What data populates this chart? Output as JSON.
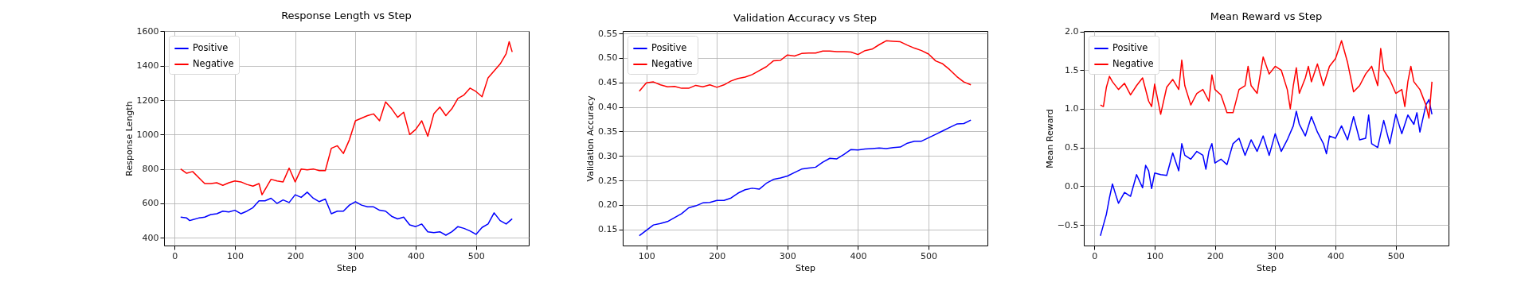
{
  "chart_data": [
    {
      "type": "line",
      "title": "Response Length vs Step",
      "xlabel": "Step",
      "ylabel": "Response Length",
      "xlim": [
        -17.5,
        587.5
      ],
      "xticks": [
        0,
        100,
        200,
        300,
        400,
        500
      ],
      "ylim": [
        355,
        1602
      ],
      "yticks": [
        400,
        600,
        800,
        1000,
        1200,
        1400,
        1600
      ],
      "grid": true,
      "legend": "top left",
      "series": [
        {
          "name": "Positive",
          "color": "#0000ff",
          "x": [
            10,
            20,
            25,
            30,
            40,
            50,
            60,
            70,
            80,
            90,
            100,
            110,
            120,
            130,
            140,
            150,
            160,
            170,
            180,
            190,
            200,
            210,
            220,
            230,
            240,
            250,
            260,
            270,
            280,
            290,
            300,
            310,
            320,
            330,
            340,
            350,
            360,
            370,
            380,
            390,
            400,
            410,
            420,
            430,
            440,
            450,
            460,
            470,
            480,
            490,
            500,
            510,
            520,
            530,
            540,
            550,
            560
          ],
          "values": [
            520,
            515,
            500,
            505,
            515,
            520,
            535,
            540,
            555,
            550,
            560,
            540,
            555,
            575,
            615,
            615,
            630,
            600,
            620,
            605,
            650,
            635,
            665,
            630,
            610,
            625,
            540,
            555,
            555,
            590,
            610,
            590,
            580,
            580,
            560,
            555,
            525,
            510,
            520,
            475,
            465,
            480,
            435,
            430,
            435,
            415,
            435,
            465,
            455,
            440,
            420,
            460,
            480,
            545,
            500,
            480,
            510
          ]
        },
        {
          "name": "Negative",
          "color": "#ff0000",
          "x": [
            10,
            20,
            30,
            40,
            50,
            60,
            70,
            80,
            90,
            100,
            110,
            120,
            130,
            140,
            145,
            150,
            160,
            170,
            180,
            190,
            200,
            210,
            220,
            230,
            240,
            250,
            260,
            270,
            280,
            290,
            300,
            310,
            320,
            330,
            340,
            350,
            360,
            370,
            380,
            390,
            400,
            410,
            420,
            430,
            440,
            450,
            460,
            470,
            480,
            490,
            500,
            510,
            520,
            530,
            540,
            550,
            555,
            560
          ],
          "values": [
            800,
            775,
            785,
            750,
            715,
            715,
            720,
            705,
            720,
            730,
            725,
            710,
            700,
            715,
            650,
            680,
            740,
            730,
            725,
            805,
            725,
            800,
            795,
            800,
            790,
            790,
            920,
            935,
            890,
            970,
            1080,
            1095,
            1110,
            1120,
            1080,
            1190,
            1150,
            1100,
            1130,
            1000,
            1030,
            1080,
            990,
            1120,
            1160,
            1110,
            1150,
            1210,
            1230,
            1270,
            1250,
            1220,
            1330,
            1370,
            1410,
            1470,
            1540,
            1480
          ]
        }
      ]
    },
    {
      "type": "line",
      "title": "Validation Accuracy vs Step",
      "xlabel": "Step",
      "ylabel": "Validation Accuracy",
      "xlim": [
        66.5,
        583.5
      ],
      "xticks": [
        100,
        200,
        300,
        400,
        500
      ],
      "ylim": [
        0.117,
        0.555
      ],
      "yticks": [
        {
          "value": 0.15,
          "label": "0.15"
        },
        {
          "value": 0.2,
          "label": "0.20"
        },
        {
          "value": 0.25,
          "label": "0.25"
        },
        {
          "value": 0.3,
          "label": "0.30"
        },
        {
          "value": 0.35,
          "label": "0.35"
        },
        {
          "value": 0.4,
          "label": "0.40"
        },
        {
          "value": 0.45,
          "label": "0.45"
        },
        {
          "value": 0.5,
          "label": "0.50"
        },
        {
          "value": 0.55,
          "label": "0.55"
        }
      ],
      "grid": true,
      "legend": "top left",
      "x": [
        90,
        100,
        110,
        120,
        130,
        140,
        150,
        160,
        170,
        180,
        190,
        200,
        210,
        220,
        230,
        240,
        250,
        260,
        270,
        280,
        290,
        300,
        310,
        320,
        330,
        340,
        350,
        360,
        370,
        380,
        390,
        400,
        410,
        420,
        430,
        440,
        450,
        460,
        470,
        480,
        490,
        500,
        510,
        520,
        530,
        540,
        550,
        560
      ],
      "series": [
        {
          "name": "Positive",
          "color": "#0000ff",
          "values": [
            0.137,
            0.148,
            0.159,
            0.162,
            0.166,
            0.174,
            0.182,
            0.194,
            0.198,
            0.204,
            0.205,
            0.209,
            0.209,
            0.214,
            0.224,
            0.231,
            0.234,
            0.232,
            0.244,
            0.252,
            0.255,
            0.259,
            0.266,
            0.273,
            0.275,
            0.277,
            0.287,
            0.295,
            0.294,
            0.303,
            0.313,
            0.312,
            0.314,
            0.315,
            0.316,
            0.315,
            0.317,
            0.318,
            0.326,
            0.33,
            0.33,
            0.337,
            0.344,
            0.351,
            0.358,
            0.365,
            0.366,
            0.373
          ]
        },
        {
          "name": "Negative",
          "color": "#ff0000",
          "values": [
            0.432,
            0.449,
            0.451,
            0.445,
            0.441,
            0.442,
            0.438,
            0.438,
            0.444,
            0.441,
            0.445,
            0.44,
            0.445,
            0.453,
            0.458,
            0.461,
            0.466,
            0.474,
            0.482,
            0.494,
            0.495,
            0.506,
            0.504,
            0.509,
            0.51,
            0.51,
            0.514,
            0.514,
            0.513,
            0.513,
            0.512,
            0.507,
            0.515,
            0.518,
            0.527,
            0.535,
            0.534,
            0.533,
            0.526,
            0.52,
            0.515,
            0.508,
            0.494,
            0.488,
            0.476,
            0.462,
            0.451,
            0.445
          ]
        }
      ]
    },
    {
      "type": "line",
      "title": "Mean Reward vs Step",
      "xlabel": "Step",
      "ylabel": "Mean Reward",
      "xlim": [
        -17.5,
        587.5
      ],
      "xticks": [
        0,
        100,
        200,
        300,
        400,
        500
      ],
      "ylim": [
        -0.766,
        2.006
      ],
      "yticks": [
        {
          "value": -0.5,
          "label": "−0.5"
        },
        {
          "value": 0,
          "label": "0.0"
        },
        {
          "value": 0.5,
          "label": "0.5"
        },
        {
          "value": 1,
          "label": "1.0"
        },
        {
          "value": 1.5,
          "label": "1.5"
        },
        {
          "value": 2,
          "label": "2.0"
        }
      ],
      "grid": true,
      "legend": "top left",
      "series": [
        {
          "name": "Positive",
          "color": "#0000ff",
          "x": [
            10,
            15,
            20,
            25,
            30,
            35,
            40,
            50,
            60,
            70,
            80,
            85,
            90,
            95,
            100,
            110,
            120,
            130,
            140,
            145,
            150,
            160,
            170,
            180,
            185,
            190,
            195,
            200,
            210,
            220,
            230,
            240,
            250,
            260,
            270,
            280,
            290,
            300,
            310,
            320,
            330,
            335,
            340,
            350,
            360,
            370,
            380,
            385,
            390,
            400,
            410,
            420,
            430,
            440,
            450,
            455,
            460,
            470,
            480,
            490,
            500,
            510,
            520,
            530,
            535,
            540,
            550,
            555,
            560
          ],
          "values": [
            -0.64,
            -0.5,
            -0.36,
            -0.15,
            0.03,
            -0.1,
            -0.22,
            -0.08,
            -0.13,
            0.15,
            -0.02,
            0.27,
            0.2,
            -0.03,
            0.17,
            0.15,
            0.14,
            0.43,
            0.2,
            0.55,
            0.4,
            0.35,
            0.45,
            0.4,
            0.22,
            0.45,
            0.55,
            0.3,
            0.35,
            0.28,
            0.55,
            0.62,
            0.4,
            0.6,
            0.45,
            0.65,
            0.4,
            0.68,
            0.45,
            0.6,
            0.78,
            0.97,
            0.8,
            0.65,
            0.9,
            0.7,
            0.55,
            0.42,
            0.65,
            0.62,
            0.78,
            0.6,
            0.9,
            0.6,
            0.62,
            0.92,
            0.55,
            0.5,
            0.85,
            0.55,
            0.93,
            0.68,
            0.92,
            0.8,
            0.95,
            0.7,
            1.05,
            1.12,
            0.93
          ]
        },
        {
          "name": "Negative",
          "color": "#ff0000",
          "x": [
            10,
            15,
            20,
            25,
            30,
            40,
            50,
            60,
            70,
            80,
            90,
            95,
            100,
            110,
            120,
            130,
            140,
            145,
            150,
            160,
            170,
            180,
            190,
            195,
            200,
            210,
            220,
            230,
            240,
            250,
            255,
            260,
            270,
            280,
            290,
            300,
            310,
            320,
            325,
            330,
            335,
            340,
            350,
            355,
            360,
            370,
            380,
            390,
            400,
            410,
            420,
            430,
            440,
            450,
            460,
            470,
            475,
            480,
            490,
            500,
            510,
            515,
            520,
            525,
            530,
            540,
            550,
            555,
            560
          ],
          "values": [
            1.05,
            1.03,
            1.28,
            1.42,
            1.35,
            1.25,
            1.33,
            1.18,
            1.3,
            1.4,
            1.1,
            1.03,
            1.32,
            0.93,
            1.28,
            1.38,
            1.25,
            1.63,
            1.3,
            1.05,
            1.2,
            1.25,
            1.1,
            1.44,
            1.25,
            1.18,
            0.95,
            0.95,
            1.25,
            1.3,
            1.55,
            1.3,
            1.2,
            1.67,
            1.45,
            1.55,
            1.5,
            1.25,
            1.0,
            1.3,
            1.53,
            1.2,
            1.4,
            1.55,
            1.35,
            1.58,
            1.3,
            1.55,
            1.65,
            1.88,
            1.6,
            1.22,
            1.3,
            1.45,
            1.55,
            1.3,
            1.78,
            1.5,
            1.38,
            1.2,
            1.25,
            1.03,
            1.35,
            1.55,
            1.35,
            1.25,
            1.05,
            0.88,
            1.35
          ]
        }
      ]
    }
  ]
}
